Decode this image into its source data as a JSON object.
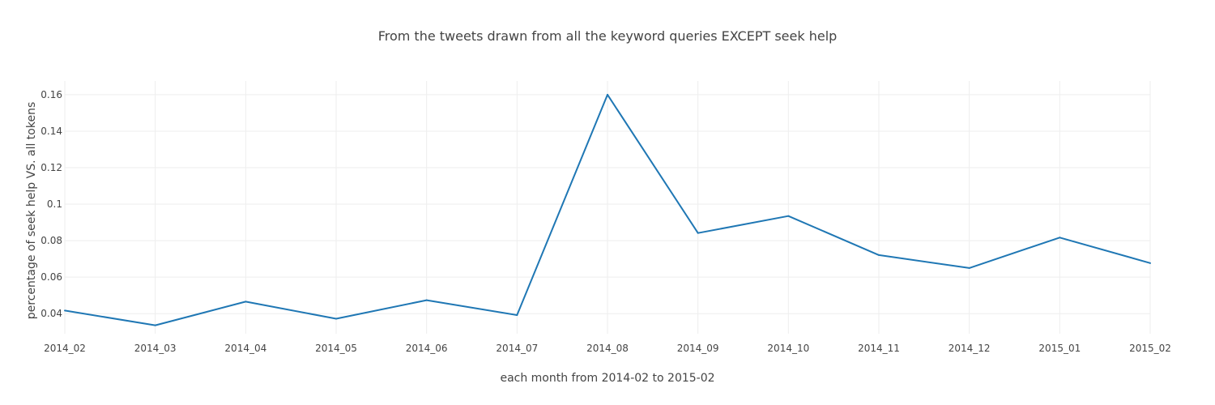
{
  "chart_data": {
    "type": "line",
    "title": "From the tweets drawn from all the keyword queries EXCEPT seek help",
    "xlabel": "each month from 2014-02 to 2015-02",
    "ylabel": "percentage of seek help VS. all tokens",
    "categories": [
      "2014_02",
      "2014_03",
      "2014_04",
      "2014_05",
      "2014_06",
      "2014_07",
      "2014_08",
      "2014_09",
      "2014_10",
      "2014_11",
      "2014_12",
      "2015_01",
      "2015_02"
    ],
    "series": [
      {
        "values": [
          0.0417,
          0.0336,
          0.0466,
          0.0372,
          0.0474,
          0.0392,
          0.16,
          0.0842,
          0.0935,
          0.0721,
          0.065,
          0.0817,
          0.0677
        ],
        "color": "#1f77b4"
      }
    ],
    "ylim": [
      0.029,
      0.1675
    ],
    "yticks": [
      0.04,
      0.06,
      0.08,
      0.1,
      0.12,
      0.14,
      0.16
    ],
    "ytick_labels": [
      "0.04",
      "0.06",
      "0.08",
      "0.1",
      "0.12",
      "0.14",
      "0.16"
    ],
    "grid": true,
    "legend": "none"
  }
}
